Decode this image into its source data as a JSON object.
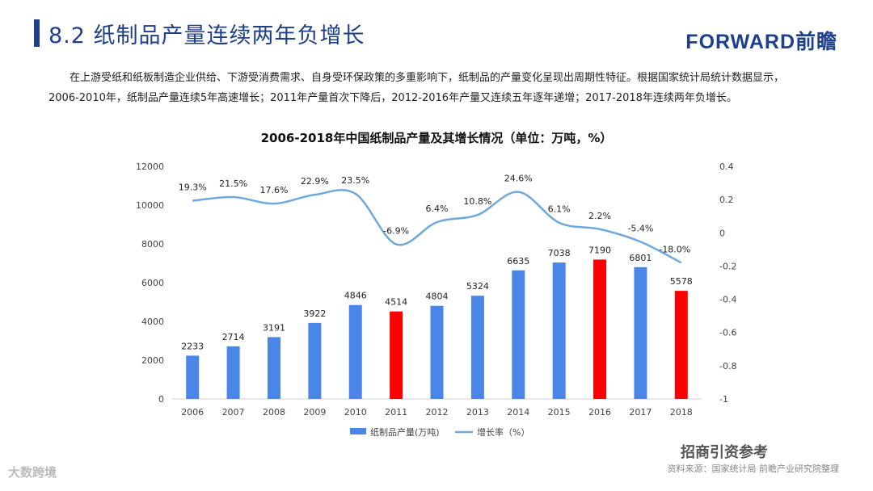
{
  "header": {
    "title": "8.2 纸制品产量连续两年负增长",
    "logo": "FORWARD前瞻"
  },
  "intro": {
    "line1": "在上游受纸和纸板制造企业供给、下游受消费需求、自身受环保政策的多重影响下，纸制品的产量变化呈现出周期性特征。根据国家统计局统计数据显示，",
    "line2": "2006-2010年，纸制品产量连续5年高速增长；2011年产量首次下降后，2012-2016年产量又连续五年逐年递增；2017-2018年连续两年负增长。"
  },
  "footer": {
    "source": "资料来源：国家统计局  前瞻产业研究院整理",
    "watermark_left": "大数跨境",
    "watermark_right": "招商引资参考"
  },
  "colors": {
    "bar": "#4a86e8",
    "bar_highlight": "#ff0000",
    "line": "#6fa8dc",
    "title": "#1e3f8a"
  },
  "chart_data": {
    "type": "bar",
    "title": "2006-2018年中国纸制品产量及其增长情况（单位：万吨，%）",
    "categories": [
      "2006",
      "2007",
      "2008",
      "2009",
      "2010",
      "2011",
      "2012",
      "2013",
      "2014",
      "2015",
      "2016",
      "2017",
      "2018"
    ],
    "series": [
      {
        "name": "纸制品产量(万吨)",
        "axis": "left",
        "type": "bar",
        "values": [
          2233,
          2714,
          3191,
          3922,
          4846,
          4514,
          4804,
          5324,
          6635,
          7038,
          7190,
          6801,
          5578
        ],
        "highlight": [
          false,
          false,
          false,
          false,
          false,
          true,
          false,
          false,
          false,
          false,
          true,
          false,
          true
        ]
      },
      {
        "name": "增长率（%）",
        "axis": "right",
        "type": "line",
        "values": [
          0.193,
          0.215,
          0.176,
          0.229,
          0.235,
          -0.069,
          0.064,
          0.108,
          0.246,
          0.061,
          0.022,
          -0.054,
          -0.18
        ],
        "labels": [
          "19.3%",
          "21.5%",
          "17.6%",
          "22.9%",
          "23.5%",
          "-6.9%",
          "6.4%",
          "10.8%",
          "24.6%",
          "6.1%",
          "2.2%",
          "-5.4%",
          "-18.0%"
        ]
      }
    ],
    "y_left": {
      "min": 0,
      "max": 12000,
      "ticks": [
        0,
        2000,
        4000,
        6000,
        8000,
        10000,
        12000
      ]
    },
    "y_right": {
      "min": -1,
      "max": 0.4,
      "ticks": [
        -1,
        -0.8,
        -0.6,
        -0.4,
        -0.2,
        0,
        0.2,
        0.4
      ],
      "tick_labels": [
        "-1",
        "-0.8",
        "-0.6",
        "-0.4",
        "-0.2",
        "0",
        "0.2",
        "0.4"
      ]
    },
    "legend": {
      "position": "bottom",
      "labels": [
        "纸制品产量(万吨)",
        "增长率（%）"
      ]
    },
    "grid": false
  }
}
